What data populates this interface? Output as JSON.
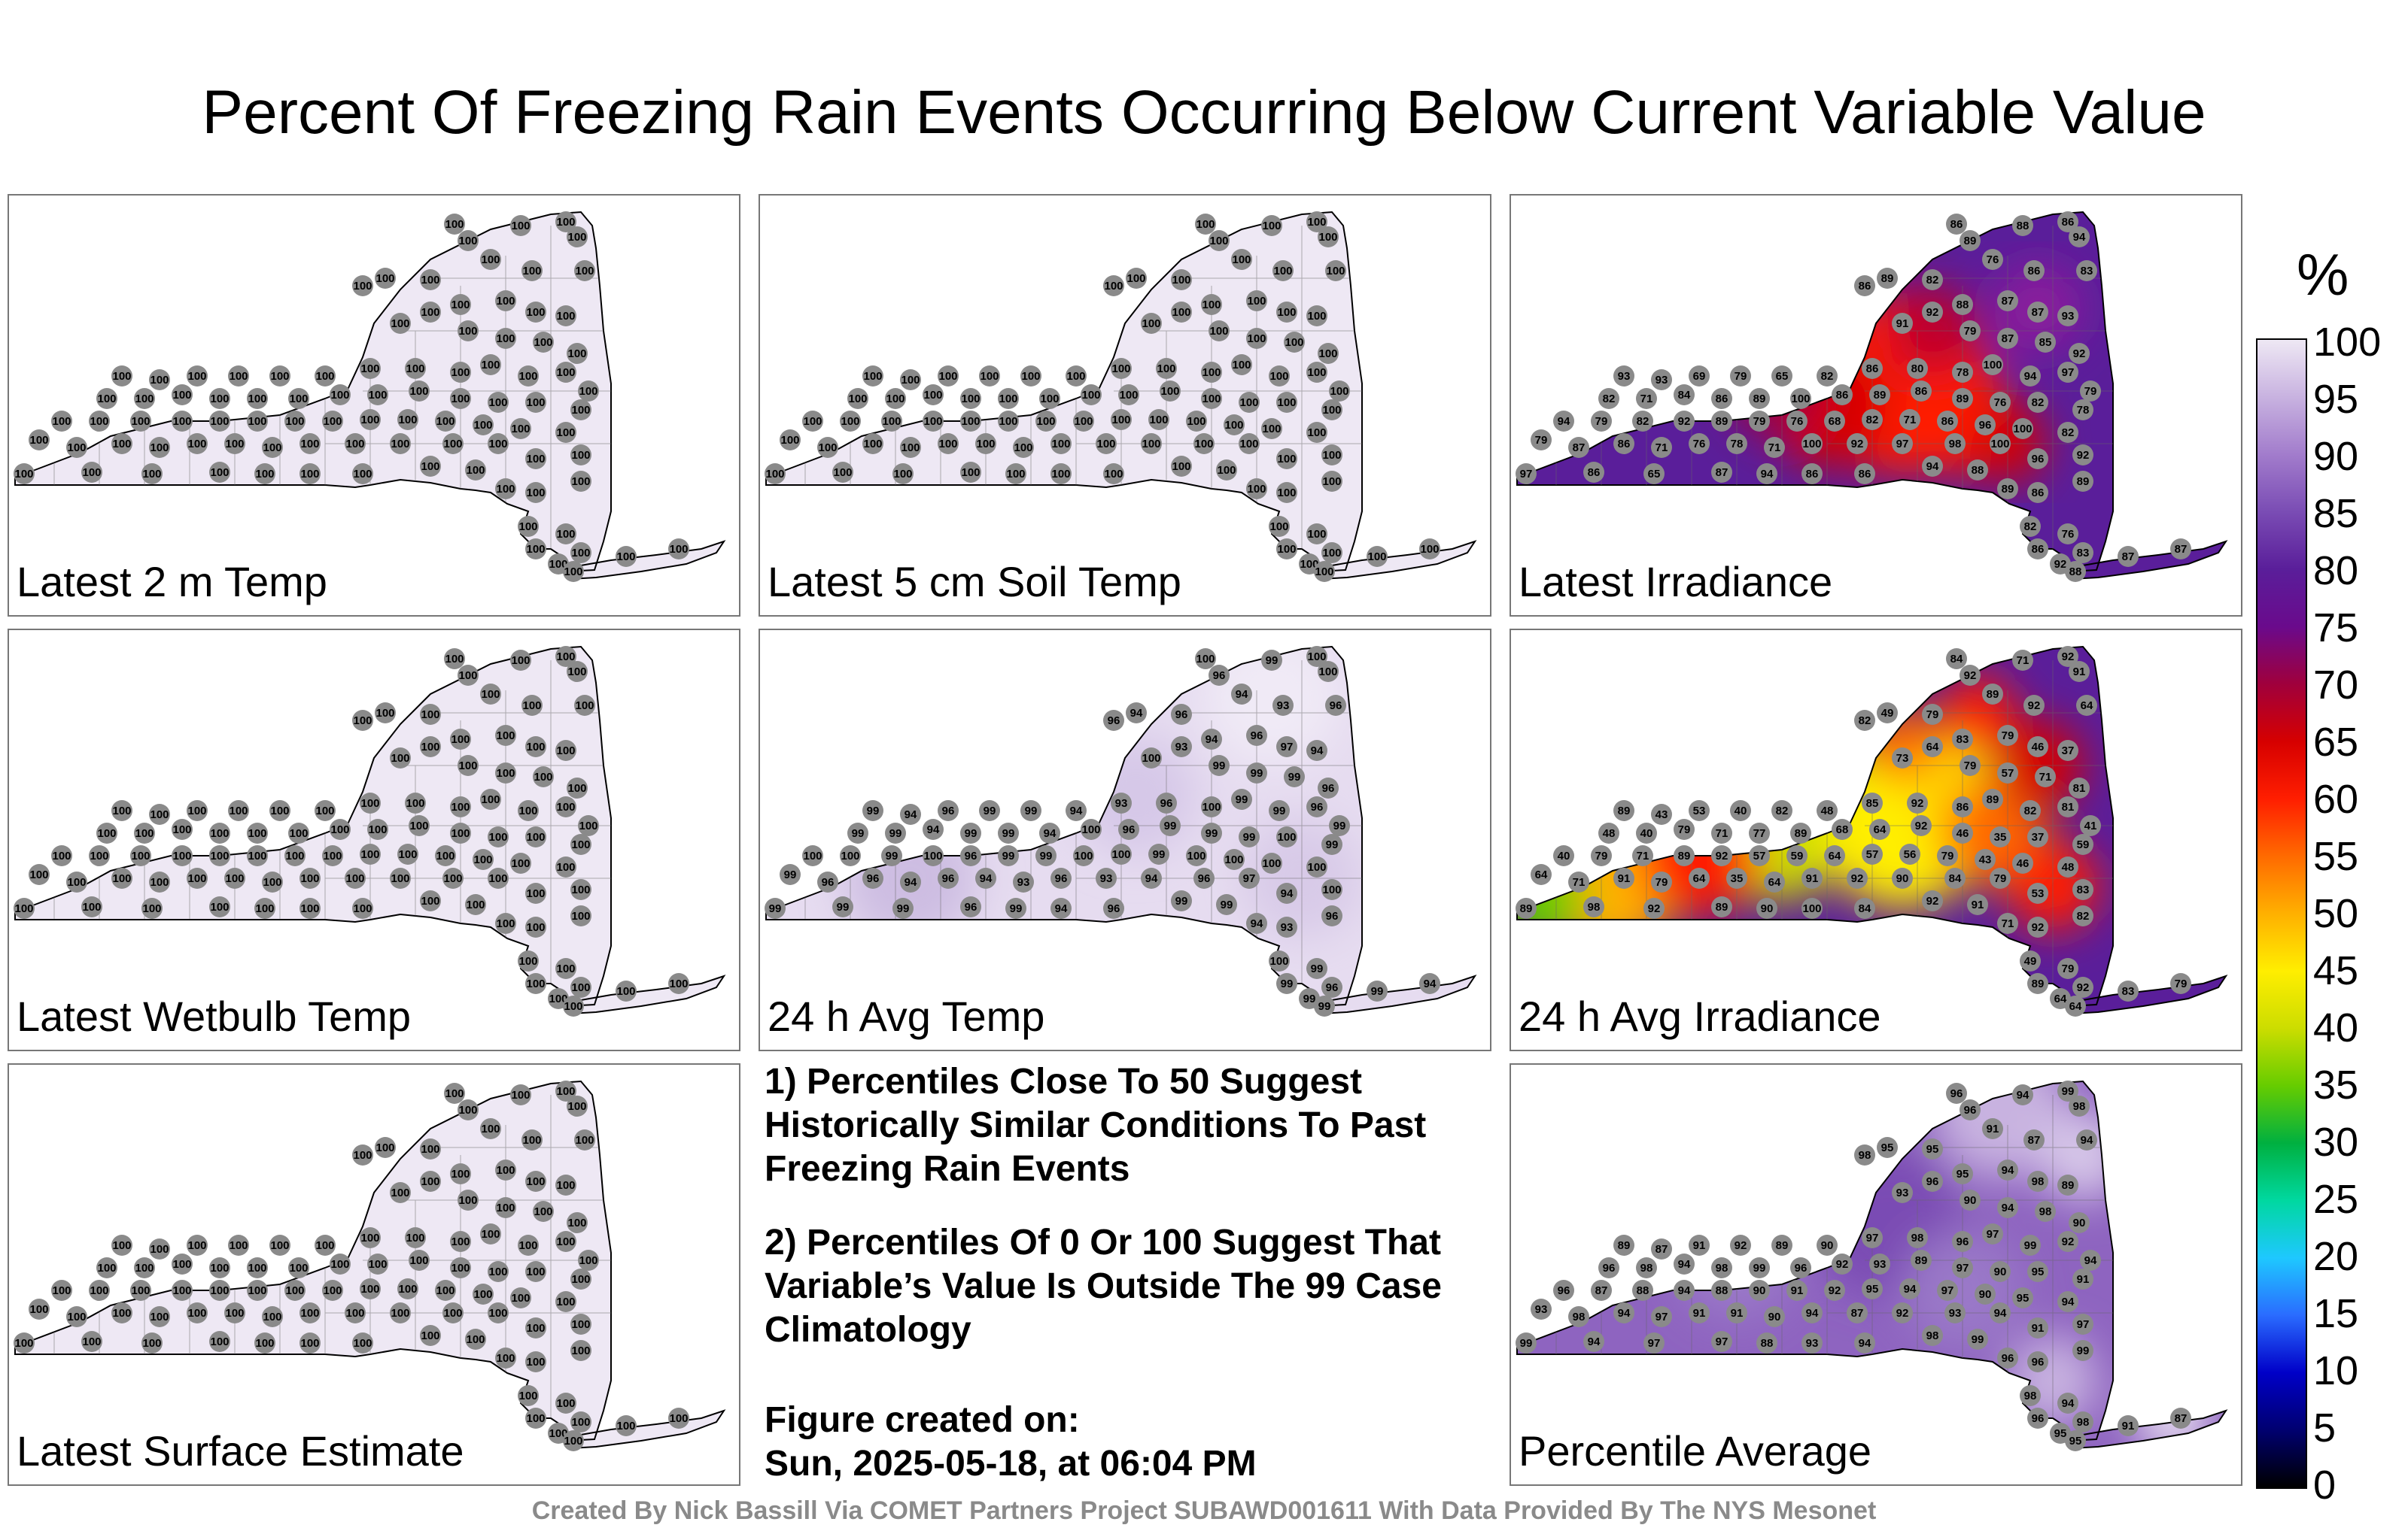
{
  "title": "Percent Of Freezing Rain Events Occurring Below Current Variable Value",
  "colorbar": {
    "unit": "%",
    "ticks": [
      "100",
      "95",
      "90",
      "85",
      "80",
      "75",
      "70",
      "65",
      "60",
      "55",
      "50",
      "45",
      "40",
      "35",
      "30",
      "25",
      "20",
      "15",
      "10",
      "5",
      "0"
    ],
    "colors": [
      "#000000",
      "#000070",
      "#0000c8",
      "#2a6cff",
      "#1ec8ff",
      "#00d8a0",
      "#00b040",
      "#66cc00",
      "#ccdd00",
      "#ffee00",
      "#ffb000",
      "#ff6a00",
      "#ff1e00",
      "#d60000",
      "#a0003c",
      "#6a0a8c",
      "#5a1e9a",
      "#7a4cb4",
      "#a27ccc",
      "#c8b2e0",
      "#eee8f4"
    ]
  },
  "panels": [
    {
      "label": "Latest 2 m Temp",
      "base": "#eee8f4",
      "mode": "uniform",
      "stations": [
        "100"
      ]
    },
    {
      "label": "Latest 5 cm Soil Temp",
      "base": "#eee8f4",
      "mode": "uniform",
      "stations": [
        "100"
      ]
    },
    {
      "label": "Latest Irradiance",
      "base": "#5a1e9a",
      "mode": "irr",
      "stations": [
        "86",
        "86",
        "94",
        "88",
        "89",
        "86",
        "89",
        "82",
        "76",
        "86",
        "83",
        "92",
        "88",
        "87",
        "87",
        "93",
        "91",
        "79",
        "87",
        "85",
        "92",
        "93",
        "93",
        "69",
        "79",
        "65",
        "82",
        "86",
        "80",
        "78",
        "100",
        "94",
        "97",
        "79",
        "82",
        "71",
        "84",
        "86",
        "89",
        "100",
        "86",
        "89",
        "86",
        "89",
        "76",
        "82",
        "78",
        "94",
        "79",
        "82",
        "92",
        "89",
        "79",
        "76",
        "68",
        "82",
        "71",
        "86",
        "96",
        "100",
        "82",
        "79",
        "87",
        "86",
        "71",
        "76",
        "78",
        "71",
        "100",
        "92",
        "97",
        "98",
        "100",
        "96",
        "92",
        "97",
        "86",
        "65",
        "87",
        "94"
      ]
    },
    {
      "label": "Latest Wetbulb Temp",
      "base": "#eee8f4",
      "mode": "uniform",
      "stations": [
        "100"
      ]
    },
    {
      "label": "24 h Avg Temp",
      "base": "#e6dcf0",
      "mode": "avgtemp",
      "stations": [
        "100",
        "100",
        "100",
        "99",
        "96",
        "96",
        "94",
        "96",
        "94",
        "93",
        "96",
        "93",
        "94",
        "96",
        "97",
        "94",
        "100",
        "99",
        "99",
        "99",
        "96",
        "99",
        "94",
        "96",
        "99",
        "99",
        "94",
        "93",
        "96",
        "100",
        "99",
        "99",
        "96",
        "99",
        "99",
        "99",
        "94",
        "99",
        "99",
        "94",
        "100",
        "96",
        "99",
        "99",
        "99",
        "100",
        "99",
        "100",
        "100",
        "99",
        "100",
        "96",
        "99",
        "99",
        "100",
        "100",
        "99",
        "100"
      ]
    },
    {
      "label": "24 h Avg Irradiance",
      "base": "#5a1e9a",
      "mode": "avgirr",
      "stations": [
        "84",
        "92",
        "91",
        "71",
        "92",
        "82",
        "49",
        "79",
        "89",
        "92",
        "64",
        "64",
        "83",
        "79",
        "46",
        "37",
        "73",
        "79",
        "57",
        "71",
        "81",
        "89",
        "43",
        "53",
        "40",
        "82",
        "48",
        "85",
        "92",
        "86",
        "89",
        "82",
        "81",
        "41",
        "48",
        "40",
        "79",
        "71",
        "77",
        "89",
        "68",
        "64",
        "92",
        "46",
        "35",
        "37",
        "59",
        "40",
        "79",
        "71",
        "89",
        "92",
        "57",
        "59",
        "64",
        "57",
        "56",
        "79",
        "43",
        "46",
        "48",
        "64",
        "71",
        "91",
        "79",
        "64",
        "35",
        "64",
        "91",
        "92",
        "90",
        "84",
        "79",
        "53",
        "83",
        "89",
        "98",
        "92",
        "89",
        "90",
        "100"
      ]
    },
    {
      "label": "Latest Surface Estimate",
      "base": "#eee8f4",
      "mode": "uniform",
      "stations": [
        "100"
      ]
    },
    {
      "label": "Percentile Average",
      "base": "#8e64c0",
      "mode": "avg",
      "stations": [
        "96",
        "99",
        "98",
        "94",
        "96",
        "98",
        "95",
        "95",
        "91",
        "87",
        "94",
        "96",
        "95",
        "94",
        "98",
        "89",
        "93",
        "90",
        "94",
        "98",
        "90",
        "89",
        "87",
        "91",
        "92",
        "89",
        "90",
        "97",
        "98",
        "96",
        "97",
        "99",
        "92",
        "94",
        "96",
        "98",
        "94",
        "98",
        "99",
        "96",
        "92",
        "93",
        "89",
        "97",
        "90",
        "95",
        "91",
        "96",
        "87",
        "88",
        "94",
        "88",
        "90",
        "91",
        "92",
        "95",
        "94",
        "97",
        "90",
        "95",
        "94",
        "93",
        "98",
        "94",
        "97",
        "91",
        "91",
        "90",
        "94",
        "87",
        "92",
        "93",
        "94",
        "91",
        "97",
        "99",
        "94",
        "97",
        "97",
        "88",
        "93",
        "94",
        "98",
        "99",
        "96"
      ]
    }
  ],
  "notes": [
    "1) Percentiles Close To 50 Suggest Historically Similar Conditions To Past Freezing Rain Events",
    "2) Percentiles Of 0 Or 100 Suggest That Variable’s Value Is Outside The 99 Case Climatology"
  ],
  "created_label": "Figure created on:",
  "created_date": "Sun, 2025-05-18, at 06:04 PM",
  "footer": "Created By Nick Bassill Via COMET Partners Project SUBAWD001611 With Data Provided By The NYS Mesonet"
}
